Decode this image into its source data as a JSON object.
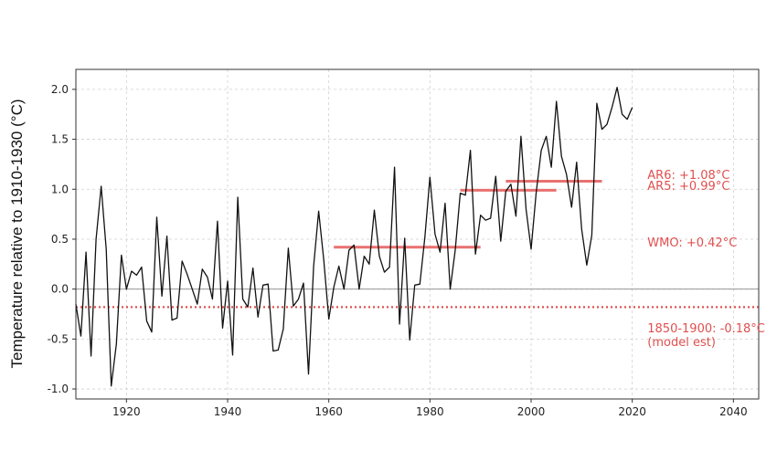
{
  "chart_data": {
    "type": "line",
    "title": "",
    "xlabel": "",
    "ylabel": "Temperature  relative to 1910-1930 (°C)",
    "xlim": [
      1910,
      2045
    ],
    "ylim": [
      -1.1,
      2.2
    ],
    "x_ticks": [
      1920,
      1940,
      1960,
      1980,
      2000,
      2020,
      2040
    ],
    "y_ticks": [
      -1.0,
      -0.5,
      0.0,
      0.5,
      1.0,
      1.5,
      2.0
    ],
    "y_tick_labels": [
      "-1.0",
      "-0.5",
      "0.0",
      "0.5",
      "1.0",
      "1.5",
      "2.0"
    ],
    "grid": true,
    "zero_line": 0.0,
    "series": [
      {
        "color": "#111111",
        "x": [
          1910,
          1911,
          1912,
          1913,
          1914,
          1915,
          1916,
          1917,
          1918,
          1919,
          1920,
          1921,
          1922,
          1923,
          1924,
          1925,
          1926,
          1927,
          1928,
          1929,
          1930,
          1931,
          1932,
          1933,
          1934,
          1935,
          1936,
          1937,
          1938,
          1939,
          1940,
          1941,
          1942,
          1943,
          1944,
          1945,
          1946,
          1947,
          1948,
          1949,
          1950,
          1951,
          1952,
          1953,
          1954,
          1955,
          1956,
          1957,
          1958,
          1959,
          1960,
          1961,
          1962,
          1963,
          1964,
          1965,
          1966,
          1967,
          1968,
          1969,
          1970,
          1971,
          1972,
          1973,
          1974,
          1975,
          1976,
          1977,
          1978,
          1979,
          1980,
          1981,
          1982,
          1983,
          1984,
          1985,
          1986,
          1987,
          1988,
          1989,
          1990,
          1991,
          1992,
          1993,
          1994,
          1995,
          1996,
          1997,
          1998,
          1999,
          2000,
          2001,
          2002,
          2003,
          2004,
          2005,
          2006,
          2007,
          2008,
          2009,
          2010,
          2011,
          2012,
          2013,
          2014,
          2015,
          2016,
          2017,
          2018,
          2019,
          2020
        ],
        "y": [
          -0.15,
          -0.47,
          0.37,
          -0.67,
          0.5,
          1.03,
          0.4,
          -0.97,
          -0.55,
          0.34,
          0.0,
          0.18,
          0.14,
          0.22,
          -0.32,
          -0.43,
          0.72,
          -0.07,
          0.53,
          -0.31,
          -0.29,
          0.28,
          0.15,
          0.0,
          -0.15,
          0.2,
          0.12,
          -0.1,
          0.68,
          -0.39,
          0.08,
          -0.66,
          0.92,
          -0.1,
          -0.18,
          0.21,
          -0.28,
          0.04,
          0.05,
          -0.62,
          -0.61,
          -0.4,
          0.41,
          -0.17,
          -0.1,
          0.06,
          -0.85,
          0.23,
          0.78,
          0.3,
          -0.3,
          0.02,
          0.23,
          0.0,
          0.39,
          0.44,
          0.0,
          0.33,
          0.25,
          0.79,
          0.33,
          0.17,
          0.22,
          1.22,
          -0.35,
          0.51,
          -0.51,
          0.04,
          0.05,
          0.52,
          1.12,
          0.55,
          0.37,
          0.86,
          0.0,
          0.39,
          0.96,
          0.94,
          1.39,
          0.35,
          0.74,
          0.69,
          0.71,
          1.13,
          0.48,
          0.98,
          1.05,
          0.73,
          1.53,
          0.8,
          0.4,
          0.96,
          1.39,
          1.53,
          1.22,
          1.88,
          1.33,
          1.15,
          0.82,
          1.27,
          0.6,
          0.24,
          0.54,
          1.86,
          1.6,
          1.65,
          1.82,
          2.02,
          1.75,
          1.7,
          1.82
        ]
      }
    ],
    "reference_lines": [
      {
        "label": "AR6: +1.08°C",
        "y": 1.08,
        "x_start": 1995,
        "x_end": 2014,
        "style": "solid",
        "color": "#e8716f"
      },
      {
        "label": "AR5: +0.99°C",
        "y": 0.99,
        "x_start": 1986,
        "x_end": 2005,
        "style": "solid",
        "color": "#e8716f"
      },
      {
        "label": "WMO: +0.42°C",
        "y": 0.42,
        "x_start": 1961,
        "x_end": 1990,
        "style": "solid",
        "color": "#e8716f"
      },
      {
        "label": "1850-1900: -0.18°C",
        "label2": "(model est)",
        "y": -0.18,
        "x_start": 1910,
        "x_end": 2045,
        "style": "dotted",
        "color": "#e0504f"
      }
    ]
  }
}
